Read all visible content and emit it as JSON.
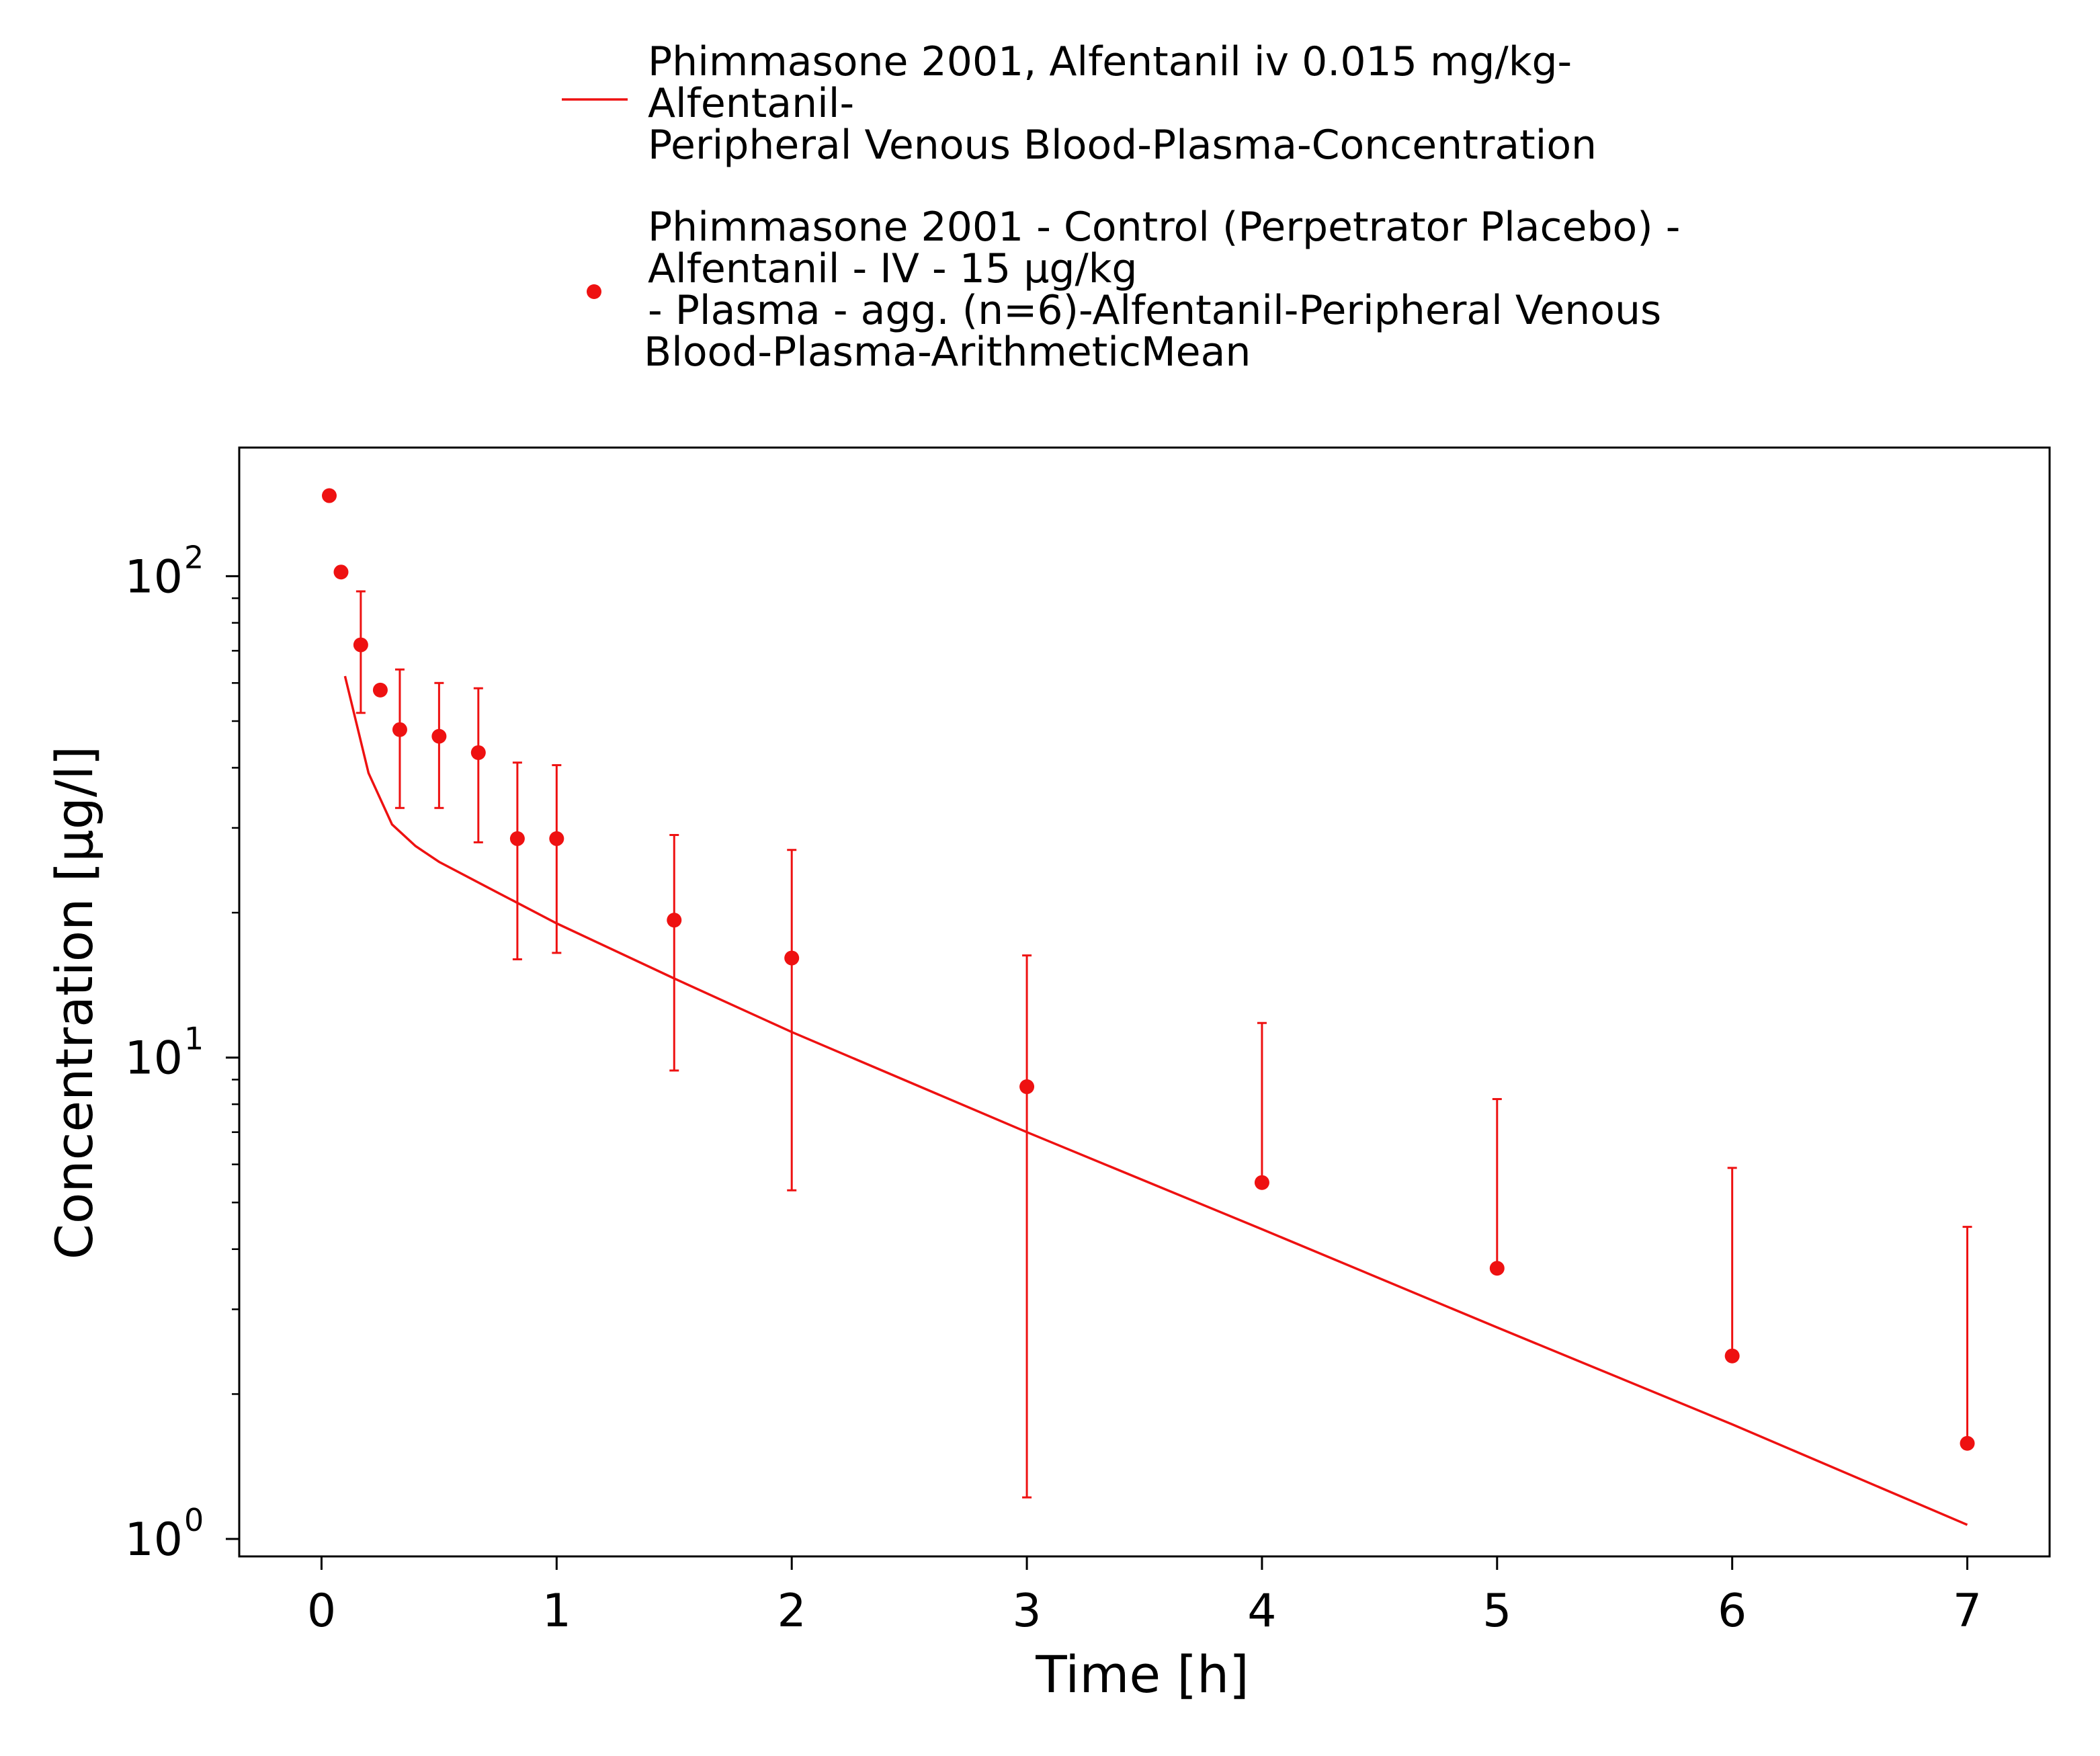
{
  "chart_data": {
    "type": "line",
    "title": "",
    "xlabel": "Time [h]",
    "ylabel": "Concentration [µg/l]",
    "xlim": [
      -0.35,
      7.35
    ],
    "ylim": [
      0.92,
      185
    ],
    "yscale": "log",
    "grid": false,
    "legend_position": "top-center",
    "x_ticks": [
      "0",
      "1",
      "2",
      "3",
      "4",
      "5",
      "6",
      "7"
    ],
    "y_ticks": [
      {
        "value": 100,
        "base": "10",
        "exp": "2"
      },
      {
        "value": 10,
        "base": "10",
        "exp": "1"
      },
      {
        "value": 1,
        "base": "10",
        "exp": "0"
      }
    ],
    "legend": [
      {
        "marker": "line",
        "lines": [
          "Phimmasone 2001, Alfentanil iv 0.015 mg/kg-",
          "Alfentanil-",
          "Peripheral Venous Blood-Plasma-Concentration"
        ]
      },
      {
        "marker": "dot",
        "lines": [
          "Phimmasone 2001 - Control (Perpetrator Placebo) -",
          "Alfentanil - IV - 15 µg/kg",
          "- Plasma - agg. (n=6)-Alfentanil-Peripheral Venous",
          "Blood-Plasma-ArithmeticMean"
        ]
      }
    ],
    "series": [
      {
        "name": "Phimmasone 2001, Alfentanil iv 0.015 mg/kg-Alfentanil-Peripheral Venous Blood-Plasma-Concentration",
        "kind": "line",
        "color": "#ee1111",
        "points": [
          [
            0.1,
            62
          ],
          [
            0.2,
            39
          ],
          [
            0.3,
            30.5
          ],
          [
            0.4,
            27.5
          ],
          [
            0.5,
            25.5
          ],
          [
            0.75,
            22.0
          ],
          [
            1.0,
            19.0
          ],
          [
            1.5,
            14.6
          ],
          [
            2.0,
            11.3
          ],
          [
            3.0,
            7.0
          ],
          [
            4.0,
            4.4
          ],
          [
            5.0,
            2.75
          ],
          [
            6.0,
            1.73
          ],
          [
            7.0,
            1.07
          ]
        ]
      },
      {
        "name": "Phimmasone 2001 - Control (Perpetrator Placebo) - Alfentanil - IV - 15 µg/kg - Plasma - agg. (n=6)-Alfentanil-Peripheral Venous Blood-Plasma-ArithmeticMean",
        "kind": "scatter",
        "color": "#ee1111",
        "points": [
          {
            "x": 0.033,
            "y": 147
          },
          {
            "x": 0.083,
            "y": 102
          },
          {
            "x": 0.167,
            "y": 72,
            "lo": 52,
            "hi": 93
          },
          {
            "x": 0.25,
            "y": 58
          },
          {
            "x": 0.333,
            "y": 48,
            "lo": 33,
            "hi": 64
          },
          {
            "x": 0.5,
            "y": 46.5,
            "lo": 33,
            "hi": 60
          },
          {
            "x": 0.667,
            "y": 43,
            "lo": 28,
            "hi": 58.5
          },
          {
            "x": 0.833,
            "y": 28.5,
            "lo": 16,
            "hi": 41
          },
          {
            "x": 1.0,
            "y": 28.5,
            "lo": 16.5,
            "hi": 40.5
          },
          {
            "x": 1.5,
            "y": 19.3,
            "lo": 9.4,
            "hi": 29
          },
          {
            "x": 2.0,
            "y": 16.1,
            "lo": 5.3,
            "hi": 27
          },
          {
            "x": 3.0,
            "y": 8.7,
            "lo": 1.22,
            "hi": 16.3
          },
          {
            "x": 4.0,
            "y": 5.5,
            "hi": 11.8
          },
          {
            "x": 5.0,
            "y": 3.65,
            "hi": 8.2
          },
          {
            "x": 6.0,
            "y": 2.4,
            "hi": 5.9
          },
          {
            "x": 7.0,
            "y": 1.58,
            "hi": 4.45
          }
        ]
      }
    ]
  }
}
